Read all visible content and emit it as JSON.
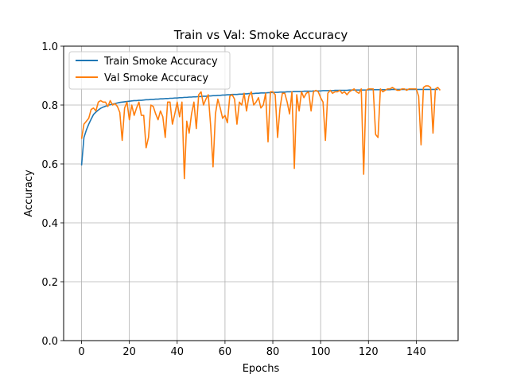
{
  "chart_data": {
    "type": "line",
    "title": "Train vs Val: Smoke Accuracy",
    "xlabel": "Epochs",
    "ylabel": "Accuracy",
    "xlim": [
      -7.5,
      157.5
    ],
    "ylim": [
      0.0,
      1.0
    ],
    "xticks": [
      0,
      20,
      40,
      60,
      80,
      100,
      120,
      140
    ],
    "yticks": [
      0.0,
      0.2,
      0.4,
      0.6,
      0.8,
      1.0
    ],
    "xtick_labels": [
      "0",
      "20",
      "40",
      "60",
      "80",
      "100",
      "120",
      "140"
    ],
    "ytick_labels": [
      "0.0",
      "0.2",
      "0.4",
      "0.6",
      "0.8",
      "1.0"
    ],
    "grid": true,
    "legend_position": "top-left",
    "series": [
      {
        "name": "Train Smoke Accuracy",
        "color": "#1f77b4",
        "x_start": 0,
        "values": [
          0.595,
          0.69,
          0.715,
          0.735,
          0.752,
          0.768,
          0.776,
          0.783,
          0.789,
          0.793,
          0.796,
          0.799,
          0.801,
          0.803,
          0.805,
          0.807,
          0.809,
          0.81,
          0.811,
          0.812,
          0.813,
          0.814,
          0.815,
          0.815,
          0.816,
          0.816,
          0.817,
          0.818,
          0.818,
          0.819,
          0.819,
          0.82,
          0.82,
          0.821,
          0.821,
          0.822,
          0.822,
          0.823,
          0.823,
          0.824,
          0.824,
          0.825,
          0.825,
          0.826,
          0.826,
          0.827,
          0.827,
          0.828,
          0.828,
          0.829,
          0.829,
          0.83,
          0.83,
          0.831,
          0.831,
          0.832,
          0.832,
          0.833,
          0.833,
          0.834,
          0.834,
          0.835,
          0.835,
          0.836,
          0.836,
          0.836,
          0.837,
          0.837,
          0.838,
          0.838,
          0.839,
          0.839,
          0.839,
          0.84,
          0.84,
          0.841,
          0.841,
          0.841,
          0.842,
          0.842,
          0.843,
          0.843,
          0.843,
          0.844,
          0.844,
          0.844,
          0.845,
          0.845,
          0.845,
          0.846,
          0.846,
          0.846,
          0.846,
          0.847,
          0.847,
          0.847,
          0.847,
          0.848,
          0.848,
          0.848,
          0.848,
          0.849,
          0.849,
          0.849,
          0.849,
          0.849,
          0.85,
          0.85,
          0.85,
          0.85,
          0.85,
          0.85,
          0.851,
          0.851,
          0.851,
          0.851,
          0.851,
          0.851,
          0.851,
          0.851,
          0.852,
          0.852,
          0.852,
          0.852,
          0.852,
          0.852,
          0.852,
          0.852,
          0.852,
          0.852,
          0.853,
          0.853,
          0.853,
          0.853,
          0.853,
          0.853,
          0.853,
          0.853,
          0.853,
          0.853,
          0.853,
          0.853,
          0.853,
          0.853,
          0.853,
          0.853,
          0.853,
          0.853,
          0.853,
          0.853
        ]
      },
      {
        "name": "Val Smoke Accuracy",
        "color": "#ff7f0e",
        "x_start": 0,
        "values": [
          0.685,
          0.735,
          0.745,
          0.755,
          0.785,
          0.79,
          0.78,
          0.81,
          0.815,
          0.81,
          0.81,
          0.795,
          0.815,
          0.8,
          0.805,
          0.795,
          0.775,
          0.68,
          0.79,
          0.81,
          0.75,
          0.8,
          0.765,
          0.79,
          0.81,
          0.765,
          0.765,
          0.655,
          0.69,
          0.8,
          0.795,
          0.77,
          0.75,
          0.78,
          0.76,
          0.69,
          0.81,
          0.81,
          0.735,
          0.77,
          0.81,
          0.76,
          0.81,
          0.55,
          0.745,
          0.705,
          0.77,
          0.81,
          0.72,
          0.835,
          0.845,
          0.8,
          0.82,
          0.835,
          0.73,
          0.59,
          0.77,
          0.82,
          0.79,
          0.755,
          0.765,
          0.74,
          0.83,
          0.835,
          0.82,
          0.735,
          0.81,
          0.8,
          0.84,
          0.78,
          0.83,
          0.845,
          0.8,
          0.81,
          0.825,
          0.79,
          0.8,
          0.84,
          0.675,
          0.845,
          0.845,
          0.835,
          0.69,
          0.79,
          0.84,
          0.84,
          0.81,
          0.77,
          0.845,
          0.585,
          0.835,
          0.78,
          0.845,
          0.825,
          0.84,
          0.845,
          0.78,
          0.845,
          0.85,
          0.845,
          0.825,
          0.81,
          0.68,
          0.84,
          0.85,
          0.84,
          0.845,
          0.845,
          0.85,
          0.84,
          0.845,
          0.835,
          0.845,
          0.85,
          0.855,
          0.845,
          0.84,
          0.855,
          0.565,
          0.85,
          0.855,
          0.855,
          0.855,
          0.7,
          0.69,
          0.855,
          0.845,
          0.85,
          0.855,
          0.855,
          0.86,
          0.855,
          0.85,
          0.85,
          0.855,
          0.855,
          0.85,
          0.855,
          0.855,
          0.855,
          0.855,
          0.83,
          0.665,
          0.86,
          0.865,
          0.865,
          0.86,
          0.705,
          0.855,
          0.86,
          0.85
        ]
      }
    ]
  }
}
